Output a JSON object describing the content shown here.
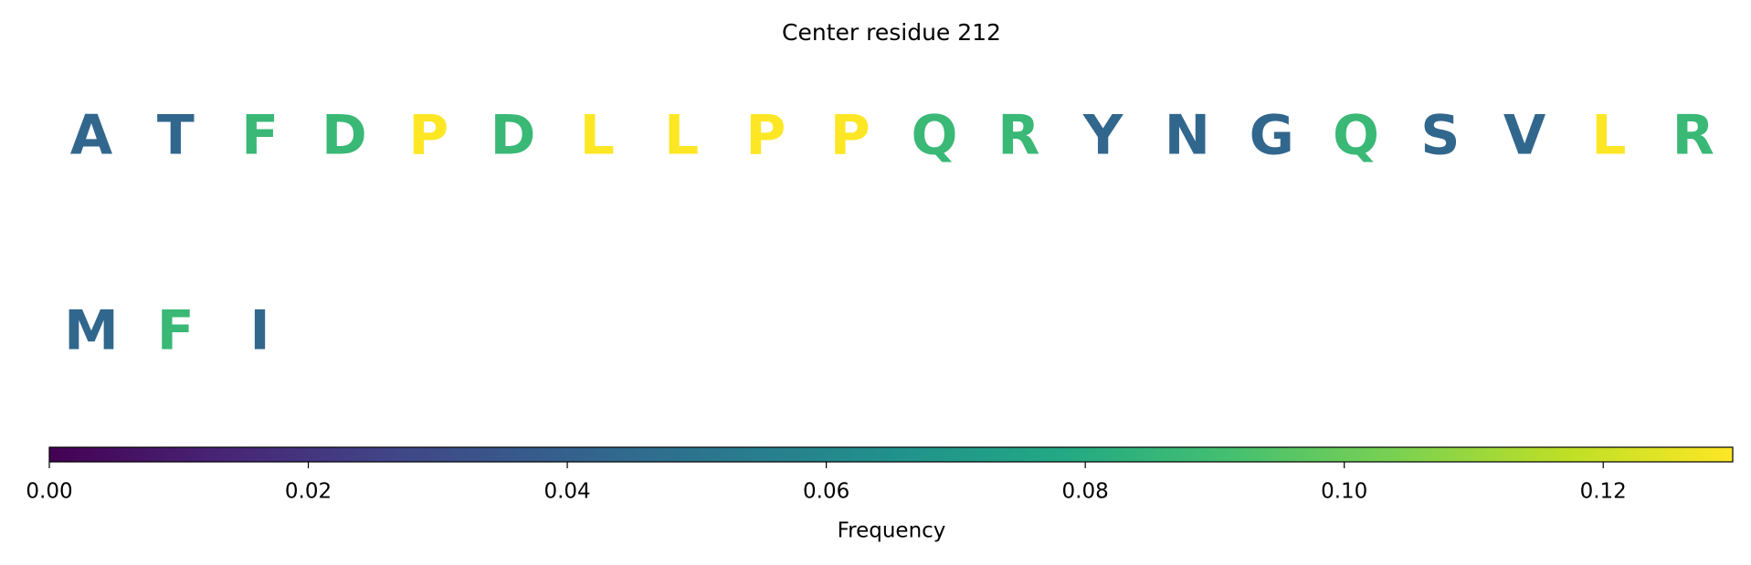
{
  "chart_data": {
    "type": "letter_grid",
    "title": "Center residue 212",
    "letters": [
      "A",
      "T",
      "F",
      "D",
      "P",
      "D",
      "L",
      "L",
      "P",
      "P",
      "Q",
      "R",
      "Y",
      "N",
      "G",
      "Q",
      "S",
      "V",
      "L",
      "R",
      "M",
      "F",
      "I"
    ],
    "values": [
      0.043,
      0.043,
      0.087,
      0.087,
      0.13,
      0.087,
      0.13,
      0.13,
      0.13,
      0.13,
      0.087,
      0.087,
      0.043,
      0.043,
      0.043,
      0.087,
      0.043,
      0.043,
      0.13,
      0.087,
      0.043,
      0.087,
      0.043
    ],
    "colormap": "viridis",
    "clim": [
      0,
      0.13
    ],
    "cticks": [
      {
        "value": 0,
        "label": "0.00"
      },
      {
        "value": 0.02,
        "label": "0.02"
      },
      {
        "value": 0.04,
        "label": "0.04"
      },
      {
        "value": 0.06,
        "label": "0.06"
      },
      {
        "value": 0.08,
        "label": "0.08"
      },
      {
        "value": 0.1,
        "label": "0.10"
      },
      {
        "value": 0.12,
        "label": "0.12"
      }
    ],
    "colorbar_label": "Frequency"
  }
}
